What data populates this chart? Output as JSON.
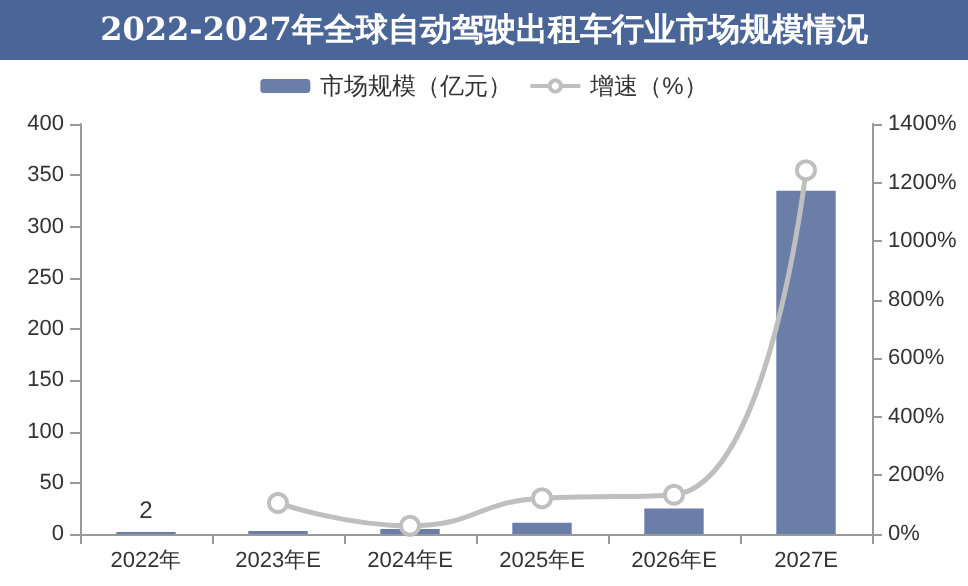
{
  "chart_data": {
    "type": "bar",
    "title": "2022-2027年全球自动驾驶出租车行业市场规模情况",
    "categories": [
      "2022年",
      "2023年E",
      "2024年E",
      "2025年E",
      "2026年E",
      "2027E"
    ],
    "series": [
      {
        "name": "市场规模（亿元）",
        "color": "#6a7ea8",
        "values": [
          2,
          3,
          5,
          11,
          25,
          335
        ],
        "value_labels": [
          "2",
          null,
          null,
          null,
          null,
          null
        ]
      },
      {
        "name": "增速（%）",
        "type": "line",
        "axis": "y2",
        "color": "#bfbfbf",
        "values": [
          null,
          106,
          28,
          122,
          134,
          1242
        ]
      }
    ],
    "ylim": [
      0,
      400
    ],
    "yticks": [
      0,
      50,
      100,
      150,
      200,
      250,
      300,
      350,
      400
    ],
    "y2lim": [
      0,
      1400
    ],
    "y2ticks": [
      {
        "value": 0,
        "label": "0%"
      },
      {
        "value": 200,
        "label": "200%"
      },
      {
        "value": 400,
        "label": "400%"
      },
      {
        "value": 600,
        "label": "600%"
      },
      {
        "value": 800,
        "label": "800%"
      },
      {
        "value": 1000,
        "label": "1000%"
      },
      {
        "value": 1200,
        "label": "1200%"
      },
      {
        "value": 1400,
        "label": "1400%"
      }
    ],
    "legend": "top",
    "grid": false,
    "marker": "circle"
  }
}
